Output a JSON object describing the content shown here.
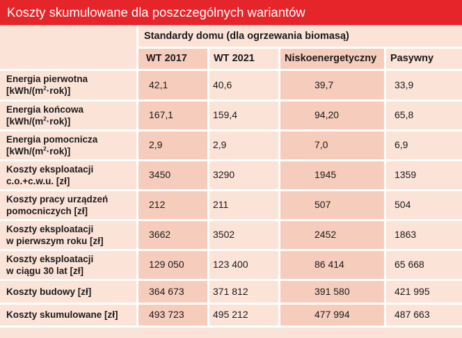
{
  "title": "Koszty skumulowane dla poszczególnych wariantów",
  "group_header": "Standardy domu (dla ogrzewania biomasą)",
  "columns": [
    "WT 2017",
    "WT 2021",
    "Niskoenergetyczny",
    "Pasywny"
  ],
  "rows": [
    {
      "label": [
        "Energia pierwotna",
        "[kWh/(m",
        "2",
        "·rok)]"
      ],
      "values": [
        "42,1",
        "40,6",
        "39,7",
        "33,9"
      ]
    },
    {
      "label": [
        "Energia końcowa",
        "[kWh/(m",
        "2",
        "·rok)]"
      ],
      "values": [
        "167,1",
        "159,4",
        "94,20",
        "65,8"
      ]
    },
    {
      "label": [
        "Energia pomocnicza",
        "[kWh/(m",
        "2",
        "·rok)]"
      ],
      "values": [
        "2,9",
        "2,9",
        "7,0",
        "6,9"
      ]
    },
    {
      "label": [
        "Koszty eksploatacji",
        "c.o.+c.w.u. [zł]"
      ],
      "values": [
        "3450",
        "3290",
        "1945",
        "1359"
      ]
    },
    {
      "label": [
        "Koszty pracy urządzeń",
        "pomocniczych [zł]"
      ],
      "values": [
        "212",
        "211",
        "507",
        "504"
      ]
    },
    {
      "label": [
        "Koszty eksploatacji",
        "w pierwszym roku [zł]"
      ],
      "values": [
        "3662",
        "3502",
        "2452",
        "1863"
      ]
    },
    {
      "label": [
        "Koszty eksploatacji",
        "w ciągu 30 lat [zł]"
      ],
      "values": [
        "129 050",
        "123 400",
        "86 414",
        "65 668"
      ]
    },
    {
      "label": [
        "Koszty budowy [zł]"
      ],
      "values": [
        "364 673",
        "371 812",
        "391 580",
        "421 995"
      ]
    },
    {
      "label": [
        "Koszty skumulowane [zł]"
      ],
      "values": [
        "493 723",
        "495 212",
        "477 994",
        "487 663"
      ]
    }
  ],
  "colors": {
    "title_bg": "#e5252a",
    "light_cell": "#fbe3d8",
    "dark_cell": "#f6cdbd",
    "grid": "#ffffff"
  }
}
